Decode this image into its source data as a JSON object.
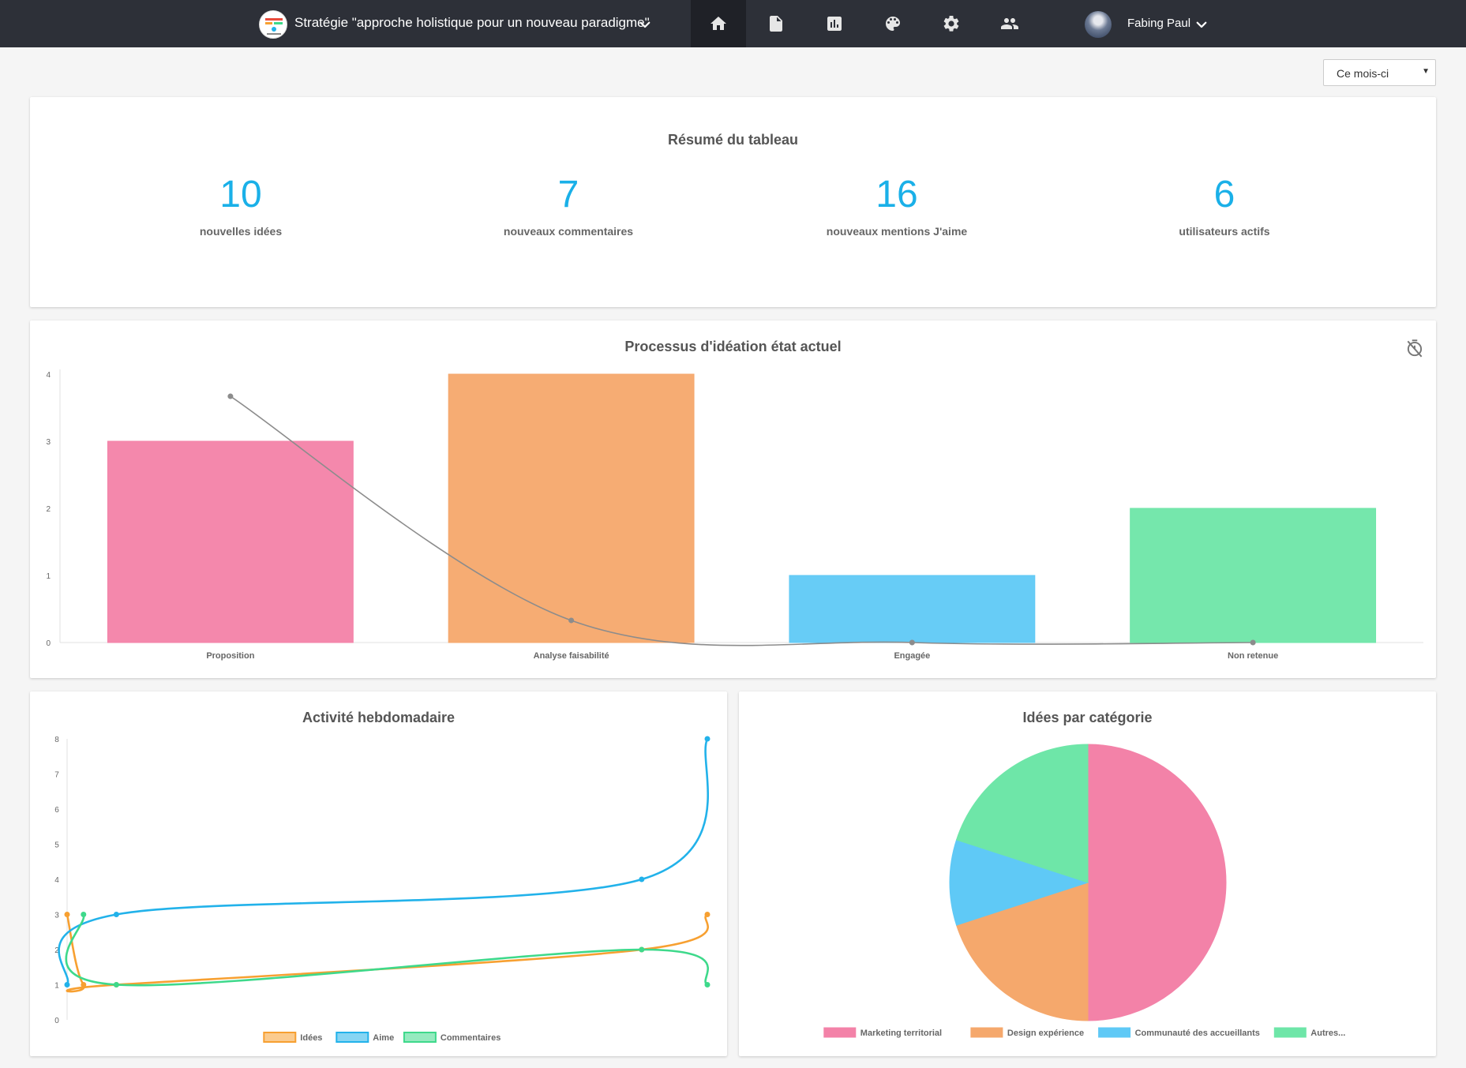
{
  "header": {
    "board_title": "Stratégie \"approche holistique pour un nouveau paradigme\"",
    "nav_items": [
      "home-icon",
      "document-icon",
      "chart-icon",
      "palette-icon",
      "gear-icon",
      "users-icon"
    ],
    "active_nav": "home-icon",
    "user_name": "Fabing Paul"
  },
  "filter": {
    "period": "Ce mois-ci"
  },
  "summary": {
    "title": "Résumé du tableau",
    "stats": [
      {
        "value": "10",
        "label": "nouvelles idées"
      },
      {
        "value": "7",
        "label": "nouveaux commentaires"
      },
      {
        "value": "16",
        "label": "nouveaux mentions J'aime"
      },
      {
        "value": "6",
        "label": "utilisateurs actifs"
      }
    ]
  },
  "charts": {
    "process_title": "Processus d'idéation état actuel",
    "weekly_title": "Activité hebdomadaire",
    "category_title": "Idées par catégorie"
  },
  "chart_data": [
    {
      "type": "bar",
      "title": "Processus d'idéation état actuel",
      "categories": [
        "Proposition",
        "Analyse faisabilité",
        "Engagée",
        "Non retenue"
      ],
      "values": [
        3,
        4,
        1,
        2
      ],
      "colors": [
        "#f382a8",
        "#f5a86c",
        "#5fc9f6",
        "#6ee6a8"
      ],
      "overlay_line": {
        "values": [
          3.67,
          0.33,
          0,
          0
        ],
        "color": "#8c8c8c"
      },
      "ylim": [
        0,
        4
      ],
      "yticks": [
        0,
        1,
        2,
        3,
        4
      ],
      "grid": false,
      "xlabel": "",
      "ylabel": ""
    },
    {
      "type": "line",
      "title": "Activité hebdomadaire",
      "x": [
        0,
        1,
        3,
        35,
        39
      ],
      "series": [
        {
          "name": "Idées",
          "values": [
            3,
            1,
            1,
            2,
            3
          ],
          "color": "#f7a031"
        },
        {
          "name": "Aime",
          "values": [
            1,
            null,
            3,
            4,
            8
          ],
          "color": "#22b2ea"
        },
        {
          "name": "Commentaires",
          "values": [
            null,
            3,
            1,
            2,
            1
          ],
          "color": "#3ed98b"
        }
      ],
      "ylim": [
        0,
        8
      ],
      "yticks": [
        0,
        1,
        2,
        3,
        4,
        5,
        6,
        7,
        8
      ],
      "legend_position": "bottom",
      "xlabel": "",
      "ylabel": ""
    },
    {
      "type": "pie",
      "title": "Idées par catégorie",
      "labels": [
        "Marketing territorial",
        "Design expérience",
        "Communauté des accueillants",
        "Autres..."
      ],
      "values": [
        5,
        2,
        1,
        2
      ],
      "colors": [
        "#f382a8",
        "#f5a86c",
        "#5fc9f6",
        "#6ee6a8"
      ],
      "legend_position": "bottom"
    }
  ]
}
